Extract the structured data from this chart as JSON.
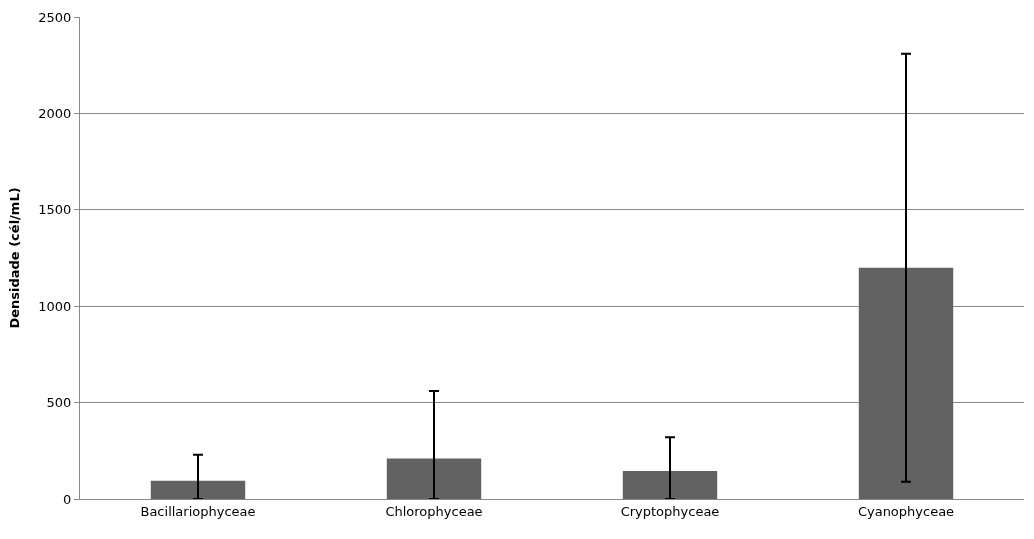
{
  "chart_data": {
    "type": "bar",
    "ylabel": "Densidade (cél/mL)",
    "categories": [
      "Bacillariophyceae",
      "Chlorophyceae",
      "Cryptophyceae",
      "Cyanophyceae"
    ],
    "values": [
      95,
      210,
      145,
      1200
    ],
    "errors": [
      [
        0,
        230
      ],
      [
        0,
        560
      ],
      [
        0,
        320
      ],
      [
        90,
        2310
      ]
    ],
    "color": "#626262",
    "ylim": [
      0,
      2500
    ],
    "yticks": [
      0,
      500,
      1000,
      1500,
      2000,
      2500
    ],
    "grid": "y"
  }
}
